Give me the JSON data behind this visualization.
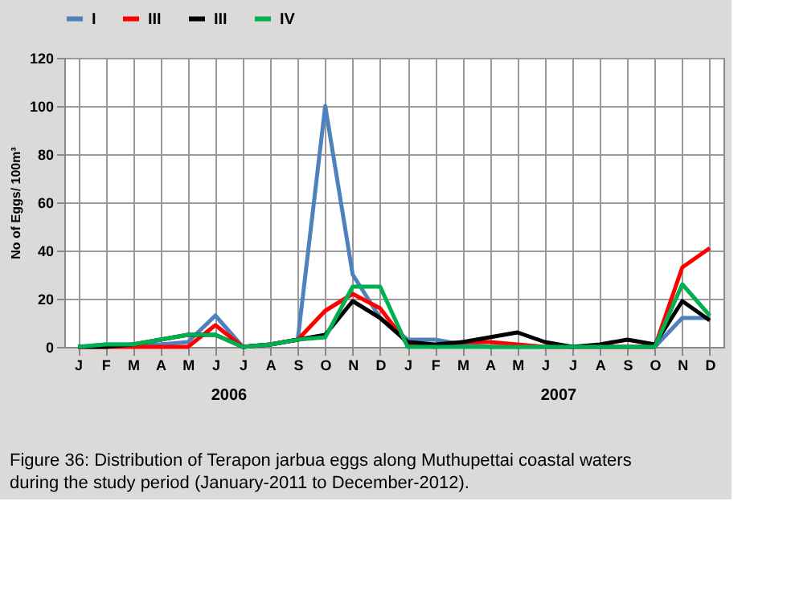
{
  "chart_data": {
    "type": "line",
    "title": "Figure 36: Distribution of Terapon jarbua eggs along Muthupettai coastal waters during the study period (January-2011 to December-2012).",
    "ylabel": "No of Eggs/ 100m³",
    "categories": [
      "J",
      "F",
      "M",
      "A",
      "M",
      "J",
      "J",
      "A",
      "S",
      "O",
      "N",
      "D",
      "J",
      "F",
      "M",
      "A",
      "M",
      "J",
      "J",
      "A",
      "S",
      "O",
      "N",
      "D"
    ],
    "annotations": [
      "2006",
      "2007"
    ],
    "series": [
      {
        "name": "I",
        "color": "#4f81bd",
        "values": [
          0,
          1,
          1,
          1,
          2,
          13,
          0,
          1,
          3,
          100,
          30,
          12,
          3,
          3,
          1,
          0,
          0,
          0,
          0,
          0,
          0,
          0,
          12,
          12
        ]
      },
      {
        "name": "III",
        "color": "#ff0000",
        "values": [
          0,
          0,
          0,
          0,
          0,
          9,
          0,
          1,
          3,
          15,
          22,
          16,
          1,
          0,
          2,
          2,
          1,
          0,
          0,
          0,
          0,
          0,
          33,
          41
        ]
      },
      {
        "name": "III",
        "color": "#000000",
        "values": [
          0,
          0,
          1,
          3,
          5,
          5,
          0,
          1,
          3,
          5,
          19,
          12,
          2,
          1,
          2,
          4,
          6,
          2,
          0,
          1,
          3,
          1,
          19,
          11
        ]
      },
      {
        "name": "IV",
        "color": "#00b050",
        "values": [
          0,
          1,
          1,
          3,
          5,
          5,
          0,
          1,
          3,
          4,
          25,
          25,
          0,
          0,
          0,
          0,
          0,
          0,
          0,
          0,
          0,
          0,
          26,
          13
        ]
      }
    ],
    "ylim": [
      0,
      120
    ],
    "yticks": [
      0,
      20,
      40,
      60,
      80,
      100,
      120
    ],
    "grid": true,
    "legend": "top",
    "marker": "none",
    "line_style": "solid"
  }
}
